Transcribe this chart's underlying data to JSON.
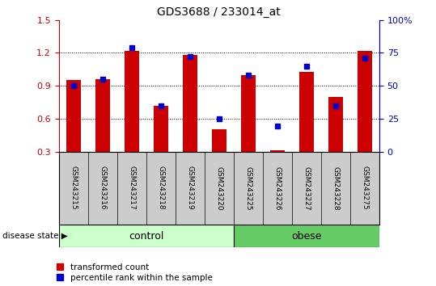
{
  "title": "GDS3688 / 233014_at",
  "samples": [
    "GSM243215",
    "GSM243216",
    "GSM243217",
    "GSM243218",
    "GSM243219",
    "GSM243220",
    "GSM243225",
    "GSM243226",
    "GSM243227",
    "GSM243228",
    "GSM243275"
  ],
  "red_values": [
    0.95,
    0.96,
    1.22,
    0.72,
    1.18,
    0.5,
    1.0,
    0.31,
    1.03,
    0.8,
    1.22
  ],
  "blue_values_left": [
    0.9,
    0.96,
    1.25,
    0.72,
    1.17,
    0.6,
    1.0,
    0.53,
    1.08,
    0.72,
    1.15
  ],
  "ylim_left": [
    0.3,
    1.5
  ],
  "ylim_right": [
    0,
    100
  ],
  "yticks_left": [
    0.3,
    0.6,
    0.9,
    1.2,
    1.5
  ],
  "yticks_right": [
    0,
    25,
    50,
    75,
    100
  ],
  "ytick_labels_right": [
    "0",
    "25",
    "50",
    "75",
    "100%"
  ],
  "n_control": 6,
  "n_obese": 5,
  "control_label": "control",
  "obese_label": "obese",
  "disease_state_label": "disease state",
  "legend_red": "transformed count",
  "legend_blue": "percentile rank within the sample",
  "red_color": "#CC0000",
  "blue_color": "#0000CC",
  "control_bg": "#CCFFCC",
  "obese_bg": "#66CC66",
  "tick_area_bg": "#CCCCCC",
  "bar_bottom": 0.3,
  "right_axis_color": "#0000CC"
}
